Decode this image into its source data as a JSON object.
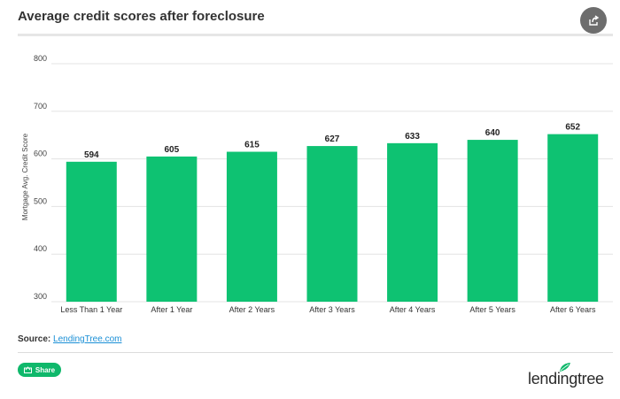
{
  "header": {
    "title": "Average credit scores after foreclosure"
  },
  "footer": {
    "source_label": "Source:",
    "source_link": "LendingTree.com",
    "share_label": "Share",
    "logo_text": "lendingtree"
  },
  "colors": {
    "bar": "#0ec272",
    "grid": "#e3e3e3",
    "accent": "#0fb86b"
  },
  "icons": {
    "header_share": "share-icon",
    "button_share": "share-icon",
    "logo": "leaf-icon"
  },
  "chart_data": {
    "type": "bar",
    "title": "Average credit scores after foreclosure",
    "ylabel": "Mortgage Avg. Credit Score",
    "xlabel": "",
    "categories": [
      "Less Than 1 Year",
      "After 1 Year",
      "After 2 Years",
      "After 3 Years",
      "After 4 Years",
      "After 5 Years",
      "After 6 Years"
    ],
    "values": [
      594,
      605,
      615,
      627,
      633,
      640,
      652
    ],
    "ylim": [
      300,
      800
    ],
    "yticks": [
      300,
      400,
      500,
      600,
      700,
      800
    ],
    "grid": true,
    "legend": "none"
  }
}
